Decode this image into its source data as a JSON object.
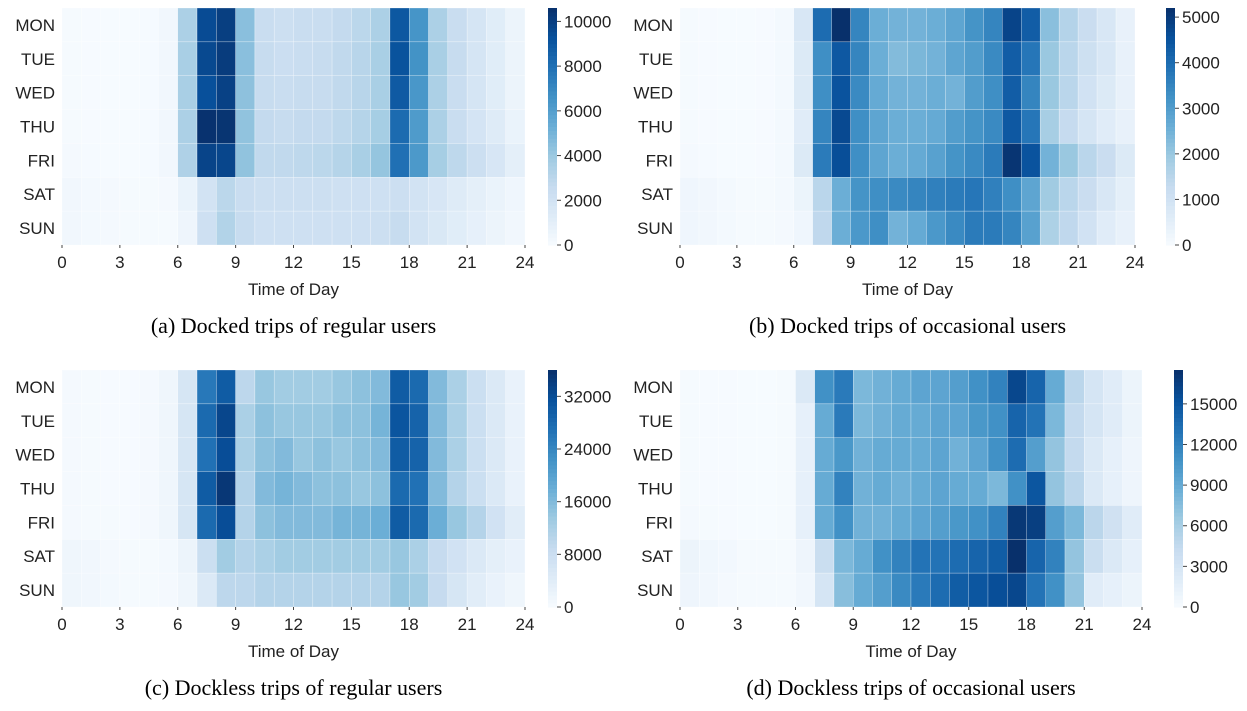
{
  "chart_data": [
    {
      "type": "heatmap",
      "caption": "(a) Docked trips of regular users",
      "x_label": "Time of Day",
      "rows": [
        "MON",
        "TUE",
        "WED",
        "THU",
        "FRI",
        "SAT",
        "SUN"
      ],
      "xlim": [
        0,
        24
      ],
      "xticks": [
        0,
        3,
        6,
        9,
        12,
        15,
        18,
        21,
        24
      ],
      "colormap": "Blues",
      "clim": [
        0,
        10600
      ],
      "cticks": [
        0,
        2000,
        4000,
        6000,
        8000,
        10000
      ],
      "values": [
        [
          100,
          50,
          30,
          30,
          80,
          300,
          3500,
          9500,
          10000,
          4500,
          2500,
          2300,
          2500,
          2500,
          2700,
          3000,
          3500,
          9000,
          6500,
          3500,
          2500,
          1800,
          1200,
          600
        ],
        [
          100,
          50,
          30,
          30,
          80,
          300,
          3600,
          9600,
          10100,
          4500,
          2600,
          2400,
          2500,
          2600,
          2800,
          3100,
          3600,
          9200,
          6600,
          3600,
          2600,
          1800,
          1200,
          600
        ],
        [
          100,
          50,
          30,
          30,
          80,
          300,
          3600,
          9300,
          9900,
          4400,
          2600,
          2500,
          2600,
          2600,
          2800,
          3100,
          3600,
          8900,
          6400,
          3500,
          2500,
          1800,
          1200,
          600
        ],
        [
          100,
          50,
          30,
          30,
          80,
          300,
          3500,
          10500,
          10400,
          4300,
          2700,
          2600,
          2700,
          2700,
          2900,
          3200,
          3700,
          8200,
          6200,
          3500,
          2500,
          1900,
          1300,
          700
        ],
        [
          150,
          80,
          40,
          30,
          80,
          300,
          3400,
          9800,
          9700,
          4300,
          2800,
          2800,
          2900,
          3000,
          3200,
          3600,
          4200,
          8000,
          6300,
          3700,
          2900,
          2300,
          1700,
          1000
        ],
        [
          300,
          200,
          150,
          100,
          100,
          150,
          700,
          2000,
          3000,
          2500,
          2300,
          2300,
          2300,
          2300,
          2200,
          2200,
          2200,
          2300,
          2000,
          1700,
          1300,
          1000,
          700,
          400
        ],
        [
          300,
          200,
          150,
          100,
          100,
          120,
          500,
          2200,
          3300,
          2600,
          2200,
          2200,
          2200,
          2200,
          2200,
          2200,
          2300,
          2600,
          2000,
          1600,
          1200,
          900,
          600,
          300
        ]
      ]
    },
    {
      "type": "heatmap",
      "caption": "(b) Docked trips of occasional users",
      "x_label": "Time of Day",
      "rows": [
        "MON",
        "TUE",
        "WED",
        "THU",
        "FRI",
        "SAT",
        "SUN"
      ],
      "xlim": [
        0,
        24
      ],
      "xticks": [
        0,
        3,
        6,
        9,
        12,
        15,
        18,
        21,
        24
      ],
      "colormap": "Blues",
      "clim": [
        0,
        5200
      ],
      "cticks": [
        0,
        1000,
        2000,
        3000,
        4000,
        5000
      ],
      "values": [
        [
          50,
          30,
          20,
          20,
          30,
          100,
          800,
          4000,
          5200,
          3500,
          2600,
          2500,
          2500,
          2600,
          2800,
          3200,
          3500,
          4800,
          4300,
          2200,
          1600,
          1200,
          800,
          400
        ],
        [
          60,
          30,
          20,
          20,
          30,
          100,
          700,
          3300,
          4400,
          3500,
          2600,
          2300,
          2400,
          2500,
          2800,
          3000,
          3400,
          4300,
          3800,
          2000,
          1500,
          1100,
          800,
          400
        ],
        [
          60,
          30,
          20,
          20,
          30,
          100,
          700,
          3300,
          4500,
          3400,
          2700,
          2500,
          2500,
          2600,
          2500,
          3000,
          3300,
          4300,
          3500,
          2000,
          1500,
          1000,
          700,
          400
        ],
        [
          60,
          30,
          20,
          20,
          30,
          100,
          600,
          3500,
          4700,
          3300,
          2800,
          2600,
          2600,
          2700,
          3000,
          3200,
          3400,
          4400,
          3800,
          1800,
          1300,
          900,
          600,
          400
        ],
        [
          80,
          40,
          20,
          20,
          30,
          100,
          700,
          3700,
          4600,
          3300,
          2800,
          2600,
          2700,
          2900,
          3200,
          3400,
          3700,
          5100,
          4500,
          2500,
          2000,
          1500,
          1200,
          700
        ],
        [
          200,
          150,
          100,
          50,
          50,
          100,
          300,
          1500,
          2600,
          3200,
          3300,
          3400,
          3500,
          3600,
          3700,
          3800,
          3600,
          3300,
          2800,
          1900,
          1500,
          1200,
          800,
          500
        ],
        [
          200,
          150,
          100,
          50,
          50,
          80,
          200,
          1400,
          2600,
          3100,
          3300,
          2500,
          2700,
          3100,
          3400,
          3700,
          3700,
          3500,
          2900,
          1700,
          1400,
          1000,
          600,
          400
        ]
      ]
    },
    {
      "type": "heatmap",
      "caption": "(c)  Dockless trips of regular users",
      "x_label": "Time of Day",
      "rows": [
        "MON",
        "TUE",
        "WED",
        "THU",
        "FRI",
        "SAT",
        "SUN"
      ],
      "xlim": [
        0,
        24
      ],
      "xticks": [
        0,
        3,
        6,
        9,
        12,
        15,
        18,
        21,
        24
      ],
      "colormap": "Blues",
      "clim": [
        0,
        36000
      ],
      "cticks": [
        0,
        8000,
        16000,
        24000,
        32000
      ],
      "values": [
        [
          500,
          300,
          200,
          200,
          500,
          1500,
          6000,
          26000,
          30000,
          10000,
          14000,
          13000,
          13000,
          13000,
          14000,
          15000,
          16000,
          30000,
          28000,
          16000,
          12000,
          8000,
          5000,
          2500
        ],
        [
          500,
          300,
          200,
          200,
          500,
          1500,
          6000,
          28000,
          33000,
          12000,
          15000,
          14000,
          14000,
          14000,
          15000,
          15000,
          17000,
          31000,
          29000,
          16000,
          12000,
          8000,
          5000,
          2500
        ],
        [
          500,
          300,
          200,
          200,
          500,
          1500,
          6000,
          27000,
          32000,
          12000,
          15000,
          16000,
          14000,
          15000,
          14000,
          15000,
          16000,
          30000,
          29000,
          16000,
          12000,
          8000,
          5000,
          2500
        ],
        [
          500,
          300,
          200,
          200,
          500,
          1500,
          6000,
          30000,
          35000,
          11000,
          16000,
          17000,
          16000,
          15000,
          15000,
          14000,
          15000,
          28000,
          27000,
          16000,
          11000,
          8000,
          5000,
          2500
        ],
        [
          600,
          400,
          300,
          200,
          500,
          1500,
          6000,
          28000,
          32000,
          11000,
          15000,
          16000,
          16000,
          16000,
          17000,
          17000,
          18000,
          30000,
          28000,
          18000,
          14000,
          11000,
          7000,
          4000
        ],
        [
          1500,
          1000,
          600,
          400,
          400,
          700,
          2000,
          8000,
          13000,
          11000,
          12000,
          13000,
          13000,
          13000,
          13000,
          13000,
          13000,
          14000,
          12000,
          9000,
          7000,
          5000,
          3500,
          2500
        ],
        [
          1500,
          1000,
          700,
          400,
          400,
          600,
          1500,
          5000,
          10000,
          10000,
          11000,
          11000,
          11000,
          11000,
          11000,
          11000,
          11000,
          14000,
          13000,
          9000,
          6000,
          4000,
          2500,
          1500
        ]
      ]
    },
    {
      "type": "heatmap",
      "caption": "(d) Dockless trips of occasional users",
      "x_label": "Time of Day",
      "rows": [
        "MON",
        "TUE",
        "WED",
        "THU",
        "FRI",
        "SAT",
        "SUN"
      ],
      "xlim": [
        0,
        24
      ],
      "xticks": [
        0,
        3,
        6,
        9,
        12,
        15,
        18,
        21,
        24
      ],
      "colormap": "Blues",
      "clim": [
        0,
        17500
      ],
      "cticks": [
        0,
        3000,
        6000,
        9000,
        12000,
        15000
      ],
      "values": [
        [
          200,
          100,
          80,
          50,
          50,
          200,
          2500,
          11000,
          12500,
          8000,
          8500,
          9000,
          9500,
          9500,
          10000,
          11000,
          12000,
          16000,
          14000,
          9000,
          5000,
          3000,
          2000,
          1000
        ],
        [
          200,
          100,
          80,
          50,
          50,
          200,
          1500,
          9000,
          12500,
          8000,
          8500,
          9000,
          9000,
          9500,
          9500,
          10500,
          11000,
          14000,
          13000,
          8000,
          4500,
          3000,
          2000,
          1000
        ],
        [
          200,
          100,
          80,
          50,
          50,
          200,
          1500,
          9000,
          10500,
          8500,
          9000,
          9000,
          9000,
          9500,
          8500,
          9500,
          11000,
          13500,
          10000,
          7000,
          4500,
          2500,
          1500,
          800
        ],
        [
          200,
          100,
          80,
          50,
          50,
          200,
          1500,
          9000,
          12000,
          8500,
          9000,
          8500,
          9000,
          9500,
          9000,
          9000,
          8000,
          11000,
          15000,
          7000,
          5000,
          2500,
          1500,
          800
        ],
        [
          300,
          150,
          100,
          50,
          50,
          200,
          1500,
          9000,
          11000,
          8500,
          8500,
          9000,
          9500,
          10000,
          10500,
          11000,
          12000,
          17000,
          16500,
          10000,
          8000,
          5000,
          3500,
          2000
        ],
        [
          1000,
          600,
          400,
          200,
          150,
          200,
          800,
          4000,
          8000,
          9000,
          11000,
          12000,
          13000,
          13000,
          13500,
          14000,
          14500,
          17500,
          14000,
          12000,
          7000,
          4000,
          2500,
          1500
        ],
        [
          800,
          500,
          300,
          200,
          150,
          150,
          500,
          3000,
          7500,
          9000,
          10000,
          11500,
          12500,
          13500,
          14500,
          15000,
          15500,
          16000,
          13000,
          11000,
          7000,
          2000,
          1500,
          1000
        ]
      ]
    }
  ]
}
